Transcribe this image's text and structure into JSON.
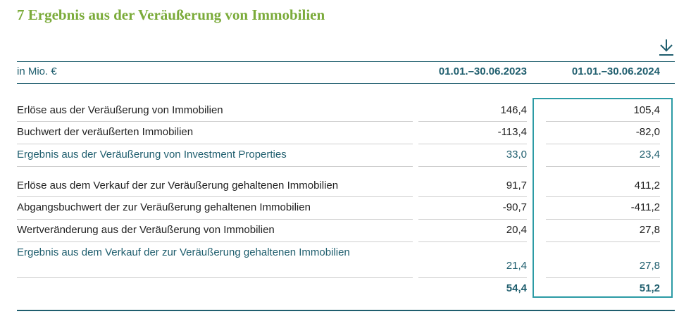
{
  "title": "7 Ergebnis aus der Veräußerung von Immobilien",
  "icons": {
    "download": "download-icon"
  },
  "table": {
    "unit": "in Mio. €",
    "col1": "01.01.–30.06.2023",
    "col2": "01.01.–30.06.2024",
    "rows": [
      {
        "label": "Erlöse aus der Veräußerung von Immobilien",
        "v1": "146,4",
        "v2": "105,4"
      },
      {
        "label": "Buchwert der veräußerten Immobilien",
        "v1": "-113,4",
        "v2": "-82,0"
      },
      {
        "label": "Ergebnis aus der Veräußerung von Investment Properties",
        "v1": "33,0",
        "v2": "23,4"
      },
      {
        "label": "Erlöse aus dem Verkauf der zur Veräußerung gehaltenen Immobilien",
        "v1": "91,7",
        "v2": "411,2"
      },
      {
        "label": "Abgangsbuchwert der zur Veräußerung gehaltenen Immobilien",
        "v1": "-90,7",
        "v2": "-411,2"
      },
      {
        "label": "Wertveränderung aus der Veräußerung von Immobilien",
        "v1": "20,4",
        "v2": "27,8"
      },
      {
        "label": "Ergebnis aus dem Verkauf der zur Veräußerung gehaltenen Immobilien",
        "v1": "21,4",
        "v2": "27,8"
      },
      {
        "label": "",
        "v1": "54,4",
        "v2": "51,2"
      }
    ]
  },
  "colors": {
    "title": "#7bab3a",
    "header": "#1f5e6e",
    "highlight": "#2c9ba5"
  }
}
